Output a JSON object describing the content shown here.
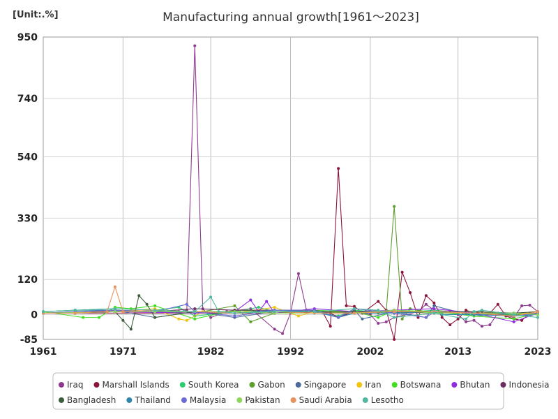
{
  "chart_data": {
    "type": "line",
    "title": "Manufacturing annual growth[1961～2023]",
    "unit_label": "[Unit:.%]",
    "xlabel": "",
    "ylabel": "",
    "xlim": [
      1961,
      2023
    ],
    "ylim": [
      -85,
      950
    ],
    "x_ticks": [
      1961,
      1971,
      1982,
      1992,
      2002,
      2013,
      2023
    ],
    "y_ticks": [
      950,
      740,
      540,
      330,
      120,
      0,
      -85
    ],
    "grid": {
      "x": true,
      "y": true
    },
    "legend_placement": "bottom",
    "series": [
      {
        "name": "Iraq",
        "color": "#8e3a8e",
        "points": [
          [
            1961,
            5
          ],
          [
            1965,
            6
          ],
          [
            1970,
            10
          ],
          [
            1975,
            8
          ],
          [
            1978,
            10
          ],
          [
            1979,
            15
          ],
          [
            1980,
            920
          ],
          [
            1981,
            20
          ],
          [
            1982,
            -10
          ],
          [
            1984,
            10
          ],
          [
            1987,
            20
          ],
          [
            1990,
            -50
          ],
          [
            1991,
            -65
          ],
          [
            1992,
            5
          ],
          [
            1993,
            140
          ],
          [
            1994,
            15
          ],
          [
            1997,
            5
          ],
          [
            2000,
            10
          ],
          [
            2002,
            0
          ],
          [
            2003,
            -30
          ],
          [
            2004,
            -25
          ],
          [
            2005,
            -10
          ],
          [
            2008,
            10
          ],
          [
            2009,
            35
          ],
          [
            2010,
            15
          ],
          [
            2012,
            10
          ],
          [
            2013,
            0
          ],
          [
            2014,
            -25
          ],
          [
            2015,
            -20
          ],
          [
            2016,
            -40
          ],
          [
            2017,
            -35
          ],
          [
            2018,
            5
          ],
          [
            2020,
            -10
          ],
          [
            2021,
            30
          ],
          [
            2022,
            32
          ],
          [
            2023,
            10
          ]
        ]
      },
      {
        "name": "Marshall Islands",
        "color": "#8b1538",
        "points": [
          [
            1961,
            5
          ],
          [
            1990,
            5
          ],
          [
            1996,
            10
          ],
          [
            1997,
            -40
          ],
          [
            1998,
            500
          ],
          [
            1999,
            30
          ],
          [
            2000,
            28
          ],
          [
            2001,
            5
          ],
          [
            2003,
            45
          ],
          [
            2004,
            15
          ],
          [
            2005,
            -85
          ],
          [
            2006,
            145
          ],
          [
            2007,
            75
          ],
          [
            2008,
            -10
          ],
          [
            2009,
            65
          ],
          [
            2010,
            40
          ],
          [
            2011,
            -10
          ],
          [
            2012,
            -35
          ],
          [
            2013,
            -15
          ],
          [
            2014,
            15
          ],
          [
            2015,
            5
          ],
          [
            2016,
            10
          ],
          [
            2017,
            5
          ],
          [
            2018,
            35
          ],
          [
            2019,
            -5
          ],
          [
            2020,
            -15
          ],
          [
            2021,
            -20
          ],
          [
            2022,
            5
          ],
          [
            2023,
            10
          ]
        ]
      },
      {
        "name": "South Korea",
        "color": "#2ecc71",
        "points": [
          [
            1961,
            10
          ],
          [
            1965,
            15
          ],
          [
            1970,
            20
          ],
          [
            1975,
            15
          ],
          [
            1978,
            25
          ],
          [
            1980,
            -5
          ],
          [
            1985,
            10
          ],
          [
            1988,
            25
          ],
          [
            1990,
            10
          ],
          [
            1995,
            10
          ],
          [
            1998,
            -5
          ],
          [
            2000,
            15
          ],
          [
            2005,
            5
          ],
          [
            2010,
            15
          ],
          [
            2015,
            0
          ],
          [
            2020,
            -2
          ],
          [
            2023,
            2
          ]
        ]
      },
      {
        "name": "Gabon",
        "color": "#5c9e2e",
        "points": [
          [
            1961,
            5
          ],
          [
            1970,
            10
          ],
          [
            1975,
            10
          ],
          [
            1980,
            5
          ],
          [
            1985,
            30
          ],
          [
            1987,
            -25
          ],
          [
            1990,
            5
          ],
          [
            1995,
            10
          ],
          [
            2000,
            5
          ],
          [
            2003,
            5
          ],
          [
            2004,
            10
          ],
          [
            2005,
            370
          ],
          [
            2006,
            -15
          ],
          [
            2007,
            20
          ],
          [
            2010,
            5
          ],
          [
            2015,
            5
          ],
          [
            2020,
            0
          ],
          [
            2023,
            5
          ]
        ]
      },
      {
        "name": "Singapore",
        "color": "#4a6a9a",
        "points": [
          [
            1961,
            5
          ],
          [
            1965,
            10
          ],
          [
            1970,
            15
          ],
          [
            1975,
            -10
          ],
          [
            1980,
            10
          ],
          [
            1985,
            -10
          ],
          [
            1990,
            10
          ],
          [
            1995,
            10
          ],
          [
            1998,
            -10
          ],
          [
            2000,
            15
          ],
          [
            2001,
            -15
          ],
          [
            2005,
            10
          ],
          [
            2009,
            -10
          ],
          [
            2010,
            30
          ],
          [
            2015,
            -5
          ],
          [
            2020,
            5
          ],
          [
            2023,
            0
          ]
        ]
      },
      {
        "name": "Iran",
        "color": "#f1c40f",
        "points": [
          [
            1961,
            5
          ],
          [
            1970,
            10
          ],
          [
            1975,
            20
          ],
          [
            1978,
            -15
          ],
          [
            1979,
            -20
          ],
          [
            1981,
            10
          ],
          [
            1985,
            5
          ],
          [
            1990,
            25
          ],
          [
            1993,
            -5
          ],
          [
            1995,
            10
          ],
          [
            2000,
            10
          ],
          [
            2005,
            10
          ],
          [
            2010,
            5
          ],
          [
            2015,
            5
          ],
          [
            2020,
            5
          ],
          [
            2023,
            5
          ]
        ]
      },
      {
        "name": "Botswana",
        "color": "#44dd22",
        "points": [
          [
            1961,
            10
          ],
          [
            1966,
            -10
          ],
          [
            1968,
            -10
          ],
          [
            1970,
            25
          ],
          [
            1972,
            20
          ],
          [
            1975,
            30
          ],
          [
            1980,
            -15
          ],
          [
            1985,
            15
          ],
          [
            1990,
            10
          ],
          [
            1995,
            15
          ],
          [
            2000,
            10
          ],
          [
            2003,
            -10
          ],
          [
            2005,
            15
          ],
          [
            2010,
            10
          ],
          [
            2015,
            -5
          ],
          [
            2020,
            -15
          ],
          [
            2023,
            5
          ]
        ]
      },
      {
        "name": "Bhutan",
        "color": "#8e2ee0",
        "points": [
          [
            1961,
            5
          ],
          [
            1970,
            10
          ],
          [
            1980,
            5
          ],
          [
            1985,
            10
          ],
          [
            1987,
            50
          ],
          [
            1988,
            10
          ],
          [
            1989,
            45
          ],
          [
            1990,
            5
          ],
          [
            1995,
            20
          ],
          [
            2000,
            10
          ],
          [
            2005,
            15
          ],
          [
            2010,
            20
          ],
          [
            2015,
            5
          ],
          [
            2020,
            -25
          ],
          [
            2023,
            5
          ]
        ]
      },
      {
        "name": "Indonesia",
        "color": "#6b2b5e",
        "points": [
          [
            1961,
            5
          ],
          [
            1965,
            5
          ],
          [
            1970,
            15
          ],
          [
            1975,
            10
          ],
          [
            1980,
            20
          ],
          [
            1985,
            15
          ],
          [
            1990,
            15
          ],
          [
            1995,
            15
          ],
          [
            1997,
            5
          ],
          [
            1998,
            -10
          ],
          [
            2000,
            10
          ],
          [
            2005,
            10
          ],
          [
            2010,
            5
          ],
          [
            2015,
            5
          ],
          [
            2020,
            -5
          ],
          [
            2023,
            5
          ]
        ]
      },
      {
        "name": "Bangladesh",
        "color": "#3d5e3d",
        "points": [
          [
            1961,
            5
          ],
          [
            1965,
            5
          ],
          [
            1970,
            10
          ],
          [
            1971,
            -20
          ],
          [
            1972,
            -50
          ],
          [
            1973,
            65
          ],
          [
            1974,
            35
          ],
          [
            1975,
            -10
          ],
          [
            1980,
            10
          ],
          [
            1985,
            10
          ],
          [
            1990,
            5
          ],
          [
            1995,
            10
          ],
          [
            2000,
            10
          ],
          [
            2005,
            10
          ],
          [
            2010,
            10
          ],
          [
            2015,
            10
          ],
          [
            2020,
            5
          ],
          [
            2023,
            10
          ]
        ]
      },
      {
        "name": "Thailand",
        "color": "#2e86ab",
        "points": [
          [
            1961,
            10
          ],
          [
            1965,
            15
          ],
          [
            1970,
            15
          ],
          [
            1975,
            10
          ],
          [
            1980,
            10
          ],
          [
            1985,
            5
          ],
          [
            1990,
            15
          ],
          [
            1995,
            10
          ],
          [
            1998,
            -10
          ],
          [
            2000,
            5
          ],
          [
            2005,
            5
          ],
          [
            2010,
            10
          ],
          [
            2011,
            0
          ],
          [
            2015,
            0
          ],
          [
            2020,
            -5
          ],
          [
            2023,
            0
          ]
        ]
      },
      {
        "name": "Malaysia",
        "color": "#6c6cd6",
        "points": [
          [
            1961,
            5
          ],
          [
            1970,
            15
          ],
          [
            1975,
            10
          ],
          [
            1979,
            35
          ],
          [
            1980,
            10
          ],
          [
            1985,
            -5
          ],
          [
            1990,
            15
          ],
          [
            1995,
            15
          ],
          [
            1998,
            -10
          ],
          [
            2000,
            20
          ],
          [
            2005,
            5
          ],
          [
            2009,
            -10
          ],
          [
            2010,
            10
          ],
          [
            2015,
            5
          ],
          [
            2020,
            -5
          ],
          [
            2023,
            5
          ]
        ]
      },
      {
        "name": "Pakistan",
        "color": "#8ed65c",
        "points": [
          [
            1961,
            5
          ],
          [
            1970,
            10
          ],
          [
            1975,
            10
          ],
          [
            1980,
            10
          ],
          [
            1985,
            10
          ],
          [
            1990,
            5
          ],
          [
            1995,
            5
          ],
          [
            2000,
            5
          ],
          [
            2005,
            15
          ],
          [
            2010,
            5
          ],
          [
            2015,
            5
          ],
          [
            2020,
            5
          ],
          [
            2023,
            0
          ]
        ]
      },
      {
        "name": "Saudi Arabia",
        "color": "#e8935c",
        "points": [
          [
            1961,
            5
          ],
          [
            1965,
            5
          ],
          [
            1969,
            10
          ],
          [
            1970,
            95
          ],
          [
            1971,
            10
          ],
          [
            1975,
            15
          ],
          [
            1980,
            10
          ],
          [
            1985,
            5
          ],
          [
            1990,
            10
          ],
          [
            1995,
            5
          ],
          [
            2000,
            5
          ],
          [
            2005,
            10
          ],
          [
            2010,
            10
          ],
          [
            2015,
            5
          ],
          [
            2020,
            -5
          ],
          [
            2023,
            10
          ]
        ]
      },
      {
        "name": "Lesotho",
        "color": "#52b8a0",
        "points": [
          [
            1961,
            10
          ],
          [
            1965,
            15
          ],
          [
            1970,
            20
          ],
          [
            1975,
            15
          ],
          [
            1980,
            10
          ],
          [
            1982,
            60
          ],
          [
            1983,
            10
          ],
          [
            1985,
            5
          ],
          [
            1990,
            10
          ],
          [
            1995,
            10
          ],
          [
            2000,
            20
          ],
          [
            2003,
            15
          ],
          [
            2005,
            -10
          ],
          [
            2010,
            5
          ],
          [
            2014,
            -15
          ],
          [
            2015,
            10
          ],
          [
            2016,
            15
          ],
          [
            2020,
            0
          ],
          [
            2023,
            -10
          ]
        ]
      }
    ]
  }
}
